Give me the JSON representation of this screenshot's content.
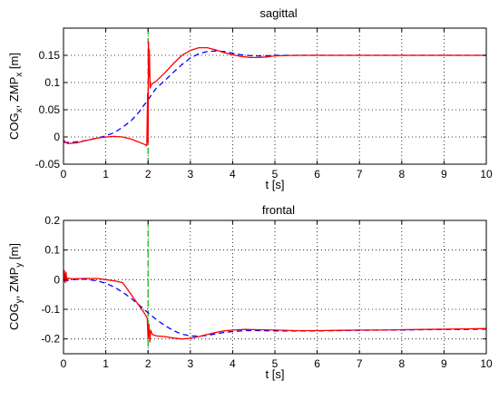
{
  "colors": {
    "cog": "#0000ff",
    "zmp": "#ff0000",
    "event": "#00bb00",
    "grid": "#000000"
  },
  "chart_data": [
    {
      "type": "line",
      "title": "sagittal",
      "xlabel": "t [s]",
      "ylabel_main": "COG",
      "ylabel_sub1": "x",
      "ylabel_mid": ", ZMP",
      "ylabel_sub2": "x",
      "ylabel_tail": " [m]",
      "xlim": [
        0,
        10
      ],
      "ylim": [
        -0.05,
        0.2
      ],
      "xticks": [
        "0",
        "1",
        "2",
        "3",
        "4",
        "5",
        "6",
        "7",
        "8",
        "9",
        "10"
      ],
      "yticks": [
        "-0.05",
        "0",
        "0.05",
        "0.1",
        "0.15"
      ],
      "ytick_values": [
        -0.05,
        0,
        0.05,
        0.1,
        0.15
      ],
      "grid": true,
      "event_line_x": 2.0,
      "series": [
        {
          "color_key": "cog",
          "dash": true,
          "x": [
            0,
            0.2,
            0.5,
            0.8,
            1.0,
            1.2,
            1.4,
            1.6,
            1.8,
            1.9,
            2.0,
            2.05,
            2.1,
            2.2,
            2.4,
            2.6,
            2.8,
            3.0,
            3.2,
            3.4,
            3.6,
            3.8,
            4.0,
            4.2,
            4.5,
            4.8,
            5.0,
            5.5,
            6,
            7,
            8,
            9,
            10
          ],
          "y": [
            -0.01,
            -0.01,
            -0.007,
            -0.002,
            0.002,
            0.008,
            0.018,
            0.03,
            0.047,
            0.058,
            0.068,
            0.074,
            0.08,
            0.09,
            0.104,
            0.119,
            0.133,
            0.145,
            0.153,
            0.157,
            0.158,
            0.157,
            0.154,
            0.151,
            0.149,
            0.149,
            0.15,
            0.15,
            0.15,
            0.15,
            0.15,
            0.15,
            0.15
          ]
        },
        {
          "color_key": "zmp",
          "dash": false,
          "x": [
            0,
            0.05,
            0.1,
            0.3,
            0.5,
            0.8,
            1.0,
            1.2,
            1.4,
            1.6,
            1.8,
            1.9,
            1.97,
            1.99,
            2.0,
            2.01,
            2.02,
            2.03,
            2.05,
            2.07,
            2.1,
            2.2,
            2.4,
            2.6,
            2.8,
            3.0,
            3.2,
            3.4,
            3.6,
            3.8,
            4.0,
            4.2,
            4.4,
            4.6,
            4.8,
            5.0,
            5.5,
            6,
            7,
            8,
            9,
            10
          ],
          "y": [
            -0.005,
            -0.01,
            -0.012,
            -0.011,
            -0.007,
            -0.002,
            0.0,
            0.001,
            0.0,
            -0.004,
            -0.01,
            -0.013,
            -0.016,
            0.08,
            -0.01,
            0.175,
            0.11,
            0.16,
            0.09,
            0.095,
            0.098,
            0.103,
            0.118,
            0.135,
            0.15,
            0.159,
            0.164,
            0.164,
            0.16,
            0.155,
            0.151,
            0.148,
            0.146,
            0.146,
            0.147,
            0.149,
            0.15,
            0.15,
            0.15,
            0.15,
            0.15,
            0.15
          ]
        }
      ]
    },
    {
      "type": "line",
      "title": "frontal",
      "xlabel": "t [s]",
      "ylabel_main": "COG",
      "ylabel_sub1": "y",
      "ylabel_mid": ", ZMP",
      "ylabel_sub2": "y",
      "ylabel_tail": " [m]",
      "xlim": [
        0,
        10
      ],
      "ylim": [
        -0.25,
        0.2
      ],
      "xticks": [
        "0",
        "1",
        "2",
        "3",
        "4",
        "5",
        "6",
        "7",
        "8",
        "9",
        "10"
      ],
      "yticks": [
        "-0.2",
        "-0.1",
        "0",
        "0.1",
        "0.2"
      ],
      "ytick_values": [
        -0.2,
        -0.1,
        0,
        0.1,
        0.2
      ],
      "grid": true,
      "event_line_x": 2.0,
      "series": [
        {
          "color_key": "cog",
          "dash": true,
          "x": [
            0,
            0.2,
            0.5,
            0.8,
            1.0,
            1.2,
            1.4,
            1.6,
            1.8,
            2.0,
            2.2,
            2.4,
            2.6,
            2.8,
            3.0,
            3.2,
            3.4,
            3.6,
            3.8,
            4.0,
            4.3,
            4.6,
            5.0,
            5.5,
            6,
            6.5,
            7,
            7.5,
            8,
            8.5,
            9,
            9.5,
            10
          ],
          "y": [
            -0.005,
            0.0,
            0.002,
            -0.004,
            -0.012,
            -0.025,
            -0.042,
            -0.063,
            -0.087,
            -0.112,
            -0.135,
            -0.155,
            -0.172,
            -0.184,
            -0.19,
            -0.191,
            -0.188,
            -0.183,
            -0.178,
            -0.175,
            -0.172,
            -0.172,
            -0.173,
            -0.173,
            -0.173,
            -0.172,
            -0.171,
            -0.17,
            -0.17,
            -0.169,
            -0.168,
            -0.168,
            -0.167
          ]
        },
        {
          "color_key": "zmp",
          "dash": false,
          "x": [
            0,
            0.02,
            0.04,
            0.06,
            0.08,
            0.1,
            0.2,
            0.5,
            0.8,
            1.0,
            1.2,
            1.4,
            1.5,
            1.6,
            1.7,
            1.8,
            1.9,
            1.98,
            2.0,
            2.02,
            2.04,
            2.06,
            2.1,
            2.2,
            2.4,
            2.6,
            2.8,
            3.0,
            3.2,
            3.4,
            3.6,
            3.8,
            4.0,
            4.3,
            4.6,
            5.0,
            5.5,
            6,
            6.5,
            7,
            7.5,
            8,
            8.5,
            9,
            9.5,
            10
          ],
          "y": [
            0.0,
            0.03,
            -0.01,
            0.025,
            -0.005,
            0.005,
            0.003,
            0.004,
            0.004,
            0.0,
            -0.004,
            -0.01,
            -0.03,
            -0.05,
            -0.07,
            -0.09,
            -0.11,
            -0.13,
            -0.2,
            -0.15,
            -0.21,
            -0.17,
            -0.185,
            -0.19,
            -0.192,
            -0.197,
            -0.2,
            -0.198,
            -0.192,
            -0.185,
            -0.178,
            -0.173,
            -0.17,
            -0.168,
            -0.169,
            -0.17,
            -0.172,
            -0.172,
            -0.171,
            -0.17,
            -0.17,
            -0.169,
            -0.168,
            -0.167,
            -0.166,
            -0.165
          ]
        }
      ]
    }
  ]
}
